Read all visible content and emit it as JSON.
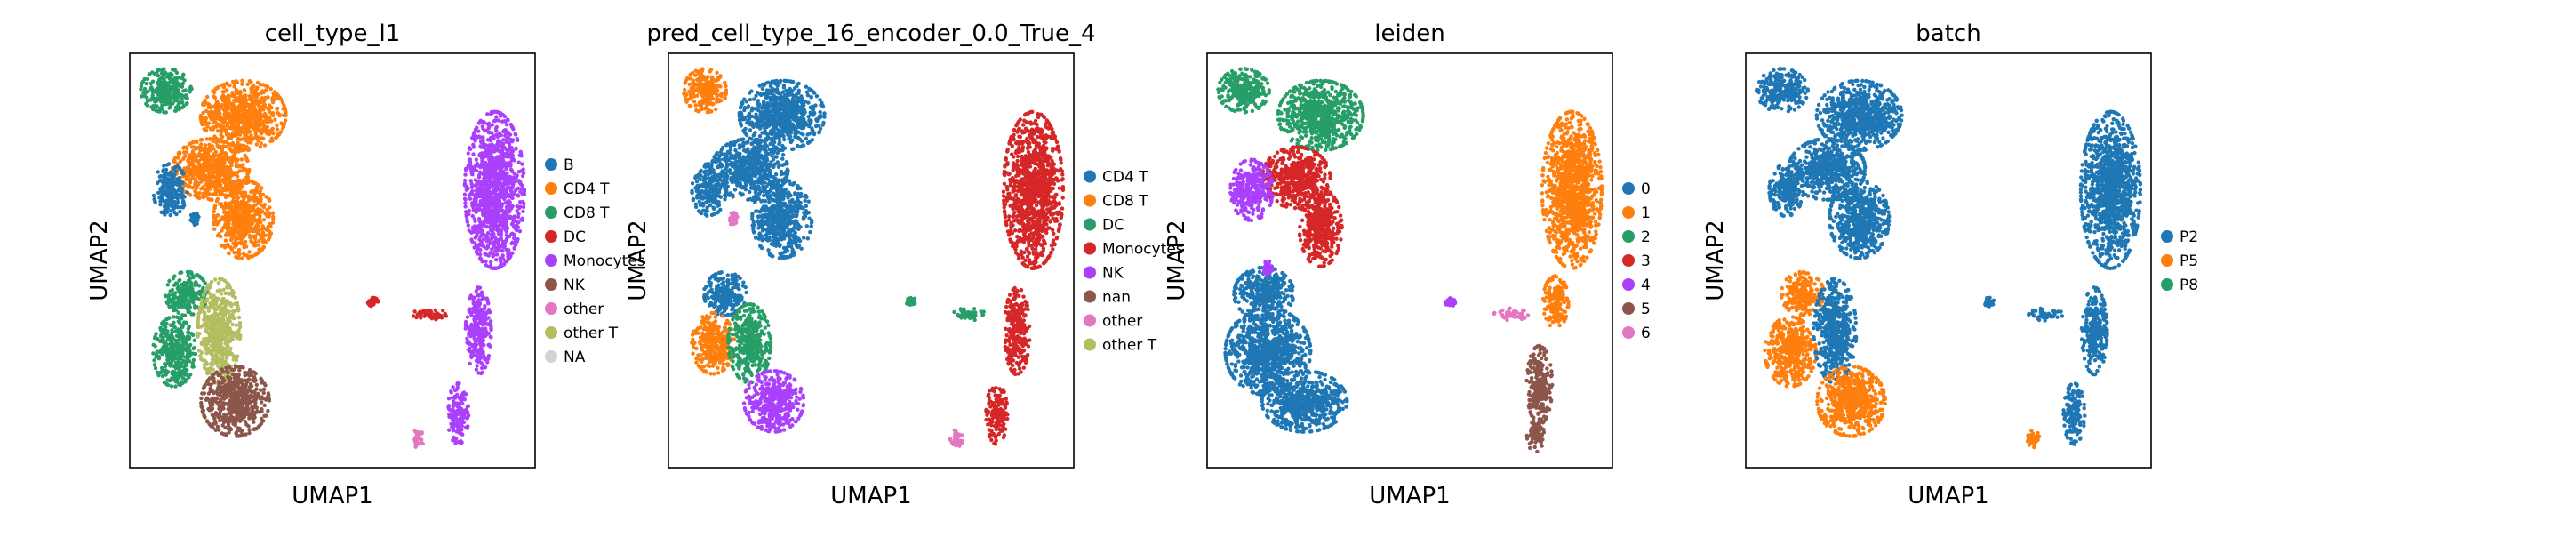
{
  "figure": {
    "panels": [
      {
        "title": "cell_type_l1",
        "xlabel": "UMAP1",
        "ylabel": "UMAP2",
        "legend": [
          {
            "label": "B",
            "color": "#1f77b4"
          },
          {
            "label": "CD4 T",
            "color": "#ff7f0e"
          },
          {
            "label": "CD8 T",
            "color": "#279e68"
          },
          {
            "label": "DC",
            "color": "#d62728"
          },
          {
            "label": "Monocytes",
            "color": "#aa40fc"
          },
          {
            "label": "NK",
            "color": "#8c564b"
          },
          {
            "label": "other",
            "color": "#e377c2"
          },
          {
            "label": "other T",
            "color": "#b5bd61"
          },
          {
            "label": "NA",
            "color": "#d3d3d3"
          }
        ]
      },
      {
        "title": "pred_cell_type_16_encoder_0.0_True_4",
        "xlabel": "UMAP1",
        "ylabel": "UMAP2",
        "legend": [
          {
            "label": "CD4 T",
            "color": "#1f77b4"
          },
          {
            "label": "CD8 T",
            "color": "#ff7f0e"
          },
          {
            "label": "DC",
            "color": "#279e68"
          },
          {
            "label": "Monocytes",
            "color": "#d62728"
          },
          {
            "label": "NK",
            "color": "#aa40fc"
          },
          {
            "label": "nan",
            "color": "#8c564b"
          },
          {
            "label": "other",
            "color": "#e377c2"
          },
          {
            "label": "other T",
            "color": "#b5bd61"
          }
        ]
      },
      {
        "title": "leiden",
        "xlabel": "UMAP1",
        "ylabel": "UMAP2",
        "legend": [
          {
            "label": "0",
            "color": "#1f77b4"
          },
          {
            "label": "1",
            "color": "#ff7f0e"
          },
          {
            "label": "2",
            "color": "#279e68"
          },
          {
            "label": "3",
            "color": "#d62728"
          },
          {
            "label": "4",
            "color": "#aa40fc"
          },
          {
            "label": "5",
            "color": "#8c564b"
          },
          {
            "label": "6",
            "color": "#e377c2"
          }
        ]
      },
      {
        "title": "batch",
        "xlabel": "UMAP1",
        "ylabel": "UMAP2",
        "legend": [
          {
            "label": "P2",
            "color": "#1f77b4"
          },
          {
            "label": "P5",
            "color": "#ff7f0e"
          },
          {
            "label": "P8",
            "color": "#279e68"
          }
        ]
      }
    ]
  },
  "chart_data": [
    {
      "type": "scatter",
      "title": "cell_type_l1",
      "xlabel": "UMAP1",
      "ylabel": "UMAP2",
      "grid": false,
      "axis_ticks": false,
      "legend_position": "right",
      "categories": [
        "B",
        "CD4 T",
        "CD8 T",
        "DC",
        "Monocytes",
        "NK",
        "other",
        "other T",
        "NA"
      ],
      "colors": [
        "#1f77b4",
        "#ff7f0e",
        "#279e68",
        "#d62728",
        "#aa40fc",
        "#8c564b",
        "#e377c2",
        "#b5bd61",
        "#d3d3d3"
      ],
      "clusters": [
        {
          "name": "CD8 T",
          "x": 0.09,
          "y": 0.91,
          "rx": 0.06,
          "ry": 0.05
        },
        {
          "name": "CD4 T",
          "x": 0.28,
          "y": 0.85,
          "rx": 0.1,
          "ry": 0.08
        },
        {
          "name": "CD4 T",
          "x": 0.2,
          "y": 0.72,
          "rx": 0.09,
          "ry": 0.07
        },
        {
          "name": "CD4 T",
          "x": 0.28,
          "y": 0.6,
          "rx": 0.07,
          "ry": 0.09
        },
        {
          "name": "B",
          "x": 0.1,
          "y": 0.67,
          "rx": 0.04,
          "ry": 0.06
        },
        {
          "name": "CD8 T",
          "x": 0.14,
          "y": 0.42,
          "rx": 0.05,
          "ry": 0.05
        },
        {
          "name": "CD8 T",
          "x": 0.11,
          "y": 0.28,
          "rx": 0.05,
          "ry": 0.08
        },
        {
          "name": "other T",
          "x": 0.22,
          "y": 0.33,
          "rx": 0.05,
          "ry": 0.12
        },
        {
          "name": "NK",
          "x": 0.26,
          "y": 0.16,
          "rx": 0.08,
          "ry": 0.08
        },
        {
          "name": "Monocytes",
          "x": 0.9,
          "y": 0.67,
          "rx": 0.07,
          "ry": 0.18
        },
        {
          "name": "Monocytes",
          "x": 0.86,
          "y": 0.33,
          "rx": 0.03,
          "ry": 0.1
        },
        {
          "name": "Monocytes",
          "x": 0.81,
          "y": 0.13,
          "rx": 0.025,
          "ry": 0.07
        },
        {
          "name": "DC",
          "x": 0.74,
          "y": 0.37,
          "rx": 0.04,
          "ry": 0.014
        },
        {
          "name": "DC",
          "x": 0.6,
          "y": 0.4,
          "rx": 0.012,
          "ry": 0.01
        },
        {
          "name": "other",
          "x": 0.71,
          "y": 0.07,
          "rx": 0.015,
          "ry": 0.02
        },
        {
          "name": "B",
          "x": 0.16,
          "y": 0.6,
          "rx": 0.01,
          "ry": 0.015
        }
      ]
    },
    {
      "type": "scatter",
      "title": "pred_cell_type_16_encoder_0.0_True_4",
      "xlabel": "UMAP1",
      "ylabel": "UMAP2",
      "grid": false,
      "axis_ticks": false,
      "legend_position": "right",
      "categories": [
        "CD4 T",
        "CD8 T",
        "DC",
        "Monocytes",
        "NK",
        "nan",
        "other",
        "other T"
      ],
      "colors": [
        "#1f77b4",
        "#ff7f0e",
        "#279e68",
        "#d62728",
        "#aa40fc",
        "#8c564b",
        "#e377c2",
        "#b5bd61"
      ],
      "clusters": [
        {
          "name": "CD8 T",
          "x": 0.09,
          "y": 0.91,
          "rx": 0.05,
          "ry": 0.05
        },
        {
          "name": "CD4 T",
          "x": 0.28,
          "y": 0.85,
          "rx": 0.1,
          "ry": 0.08
        },
        {
          "name": "CD4 T",
          "x": 0.2,
          "y": 0.72,
          "rx": 0.09,
          "ry": 0.07
        },
        {
          "name": "CD4 T",
          "x": 0.28,
          "y": 0.6,
          "rx": 0.07,
          "ry": 0.09
        },
        {
          "name": "CD4 T",
          "x": 0.1,
          "y": 0.67,
          "rx": 0.04,
          "ry": 0.06
        },
        {
          "name": "CD4 T",
          "x": 0.14,
          "y": 0.42,
          "rx": 0.05,
          "ry": 0.05
        },
        {
          "name": "CD8 T",
          "x": 0.11,
          "y": 0.3,
          "rx": 0.05,
          "ry": 0.07
        },
        {
          "name": "DC",
          "x": 0.2,
          "y": 0.3,
          "rx": 0.05,
          "ry": 0.09
        },
        {
          "name": "NK",
          "x": 0.26,
          "y": 0.16,
          "rx": 0.07,
          "ry": 0.07
        },
        {
          "name": "Monocytes",
          "x": 0.9,
          "y": 0.67,
          "rx": 0.07,
          "ry": 0.18
        },
        {
          "name": "Monocytes",
          "x": 0.86,
          "y": 0.33,
          "rx": 0.03,
          "ry": 0.1
        },
        {
          "name": "Monocytes",
          "x": 0.81,
          "y": 0.13,
          "rx": 0.025,
          "ry": 0.07
        },
        {
          "name": "DC",
          "x": 0.74,
          "y": 0.37,
          "rx": 0.04,
          "ry": 0.014
        },
        {
          "name": "DC",
          "x": 0.6,
          "y": 0.4,
          "rx": 0.012,
          "ry": 0.01
        },
        {
          "name": "other",
          "x": 0.71,
          "y": 0.07,
          "rx": 0.015,
          "ry": 0.02
        },
        {
          "name": "other",
          "x": 0.16,
          "y": 0.6,
          "rx": 0.01,
          "ry": 0.015
        }
      ]
    },
    {
      "type": "scatter",
      "title": "leiden",
      "xlabel": "UMAP1",
      "ylabel": "UMAP2",
      "grid": false,
      "axis_ticks": false,
      "legend_position": "right",
      "categories": [
        "0",
        "1",
        "2",
        "3",
        "4",
        "5",
        "6"
      ],
      "colors": [
        "#1f77b4",
        "#ff7f0e",
        "#279e68",
        "#d62728",
        "#aa40fc",
        "#8c564b",
        "#e377c2"
      ],
      "clusters": [
        {
          "name": "2",
          "x": 0.09,
          "y": 0.91,
          "rx": 0.06,
          "ry": 0.05
        },
        {
          "name": "2",
          "x": 0.28,
          "y": 0.85,
          "rx": 0.1,
          "ry": 0.08
        },
        {
          "name": "3",
          "x": 0.22,
          "y": 0.7,
          "rx": 0.08,
          "ry": 0.07
        },
        {
          "name": "3",
          "x": 0.28,
          "y": 0.58,
          "rx": 0.05,
          "ry": 0.09
        },
        {
          "name": "4",
          "x": 0.11,
          "y": 0.67,
          "rx": 0.05,
          "ry": 0.07
        },
        {
          "name": "0",
          "x": 0.14,
          "y": 0.42,
          "rx": 0.07,
          "ry": 0.06
        },
        {
          "name": "0",
          "x": 0.15,
          "y": 0.28,
          "rx": 0.1,
          "ry": 0.1
        },
        {
          "name": "0",
          "x": 0.24,
          "y": 0.16,
          "rx": 0.1,
          "ry": 0.07
        },
        {
          "name": "1",
          "x": 0.9,
          "y": 0.67,
          "rx": 0.07,
          "ry": 0.18
        },
        {
          "name": "1",
          "x": 0.86,
          "y": 0.4,
          "rx": 0.03,
          "ry": 0.06
        },
        {
          "name": "5",
          "x": 0.82,
          "y": 0.2,
          "rx": 0.03,
          "ry": 0.09
        },
        {
          "name": "5",
          "x": 0.81,
          "y": 0.08,
          "rx": 0.02,
          "ry": 0.04
        },
        {
          "name": "6",
          "x": 0.75,
          "y": 0.37,
          "rx": 0.04,
          "ry": 0.014
        },
        {
          "name": "4",
          "x": 0.6,
          "y": 0.4,
          "rx": 0.012,
          "ry": 0.01
        },
        {
          "name": "4",
          "x": 0.15,
          "y": 0.48,
          "rx": 0.01,
          "ry": 0.02
        }
      ]
    },
    {
      "type": "scatter",
      "title": "batch",
      "xlabel": "UMAP1",
      "ylabel": "UMAP2",
      "grid": false,
      "axis_ticks": false,
      "legend_position": "right",
      "categories": [
        "P2",
        "P5",
        "P8"
      ],
      "colors": [
        "#1f77b4",
        "#ff7f0e",
        "#279e68"
      ],
      "clusters": [
        {
          "name": "P2",
          "x": 0.09,
          "y": 0.91,
          "rx": 0.06,
          "ry": 0.05
        },
        {
          "name": "P2",
          "x": 0.28,
          "y": 0.85,
          "rx": 0.1,
          "ry": 0.08
        },
        {
          "name": "P2",
          "x": 0.2,
          "y": 0.72,
          "rx": 0.09,
          "ry": 0.07
        },
        {
          "name": "P2",
          "x": 0.28,
          "y": 0.6,
          "rx": 0.07,
          "ry": 0.09
        },
        {
          "name": "P2",
          "x": 0.1,
          "y": 0.67,
          "rx": 0.04,
          "ry": 0.06
        },
        {
          "name": "P5",
          "x": 0.14,
          "y": 0.42,
          "rx": 0.05,
          "ry": 0.05
        },
        {
          "name": "P5",
          "x": 0.11,
          "y": 0.28,
          "rx": 0.06,
          "ry": 0.08
        },
        {
          "name": "P2",
          "x": 0.22,
          "y": 0.33,
          "rx": 0.05,
          "ry": 0.12
        },
        {
          "name": "P5",
          "x": 0.26,
          "y": 0.16,
          "rx": 0.08,
          "ry": 0.08
        },
        {
          "name": "P2",
          "x": 0.9,
          "y": 0.67,
          "rx": 0.07,
          "ry": 0.18
        },
        {
          "name": "P2",
          "x": 0.86,
          "y": 0.33,
          "rx": 0.03,
          "ry": 0.1
        },
        {
          "name": "P2",
          "x": 0.81,
          "y": 0.13,
          "rx": 0.025,
          "ry": 0.07
        },
        {
          "name": "P2",
          "x": 0.74,
          "y": 0.37,
          "rx": 0.04,
          "ry": 0.014
        },
        {
          "name": "P2",
          "x": 0.6,
          "y": 0.4,
          "rx": 0.012,
          "ry": 0.01
        },
        {
          "name": "P5",
          "x": 0.71,
          "y": 0.07,
          "rx": 0.015,
          "ry": 0.02
        }
      ]
    }
  ]
}
